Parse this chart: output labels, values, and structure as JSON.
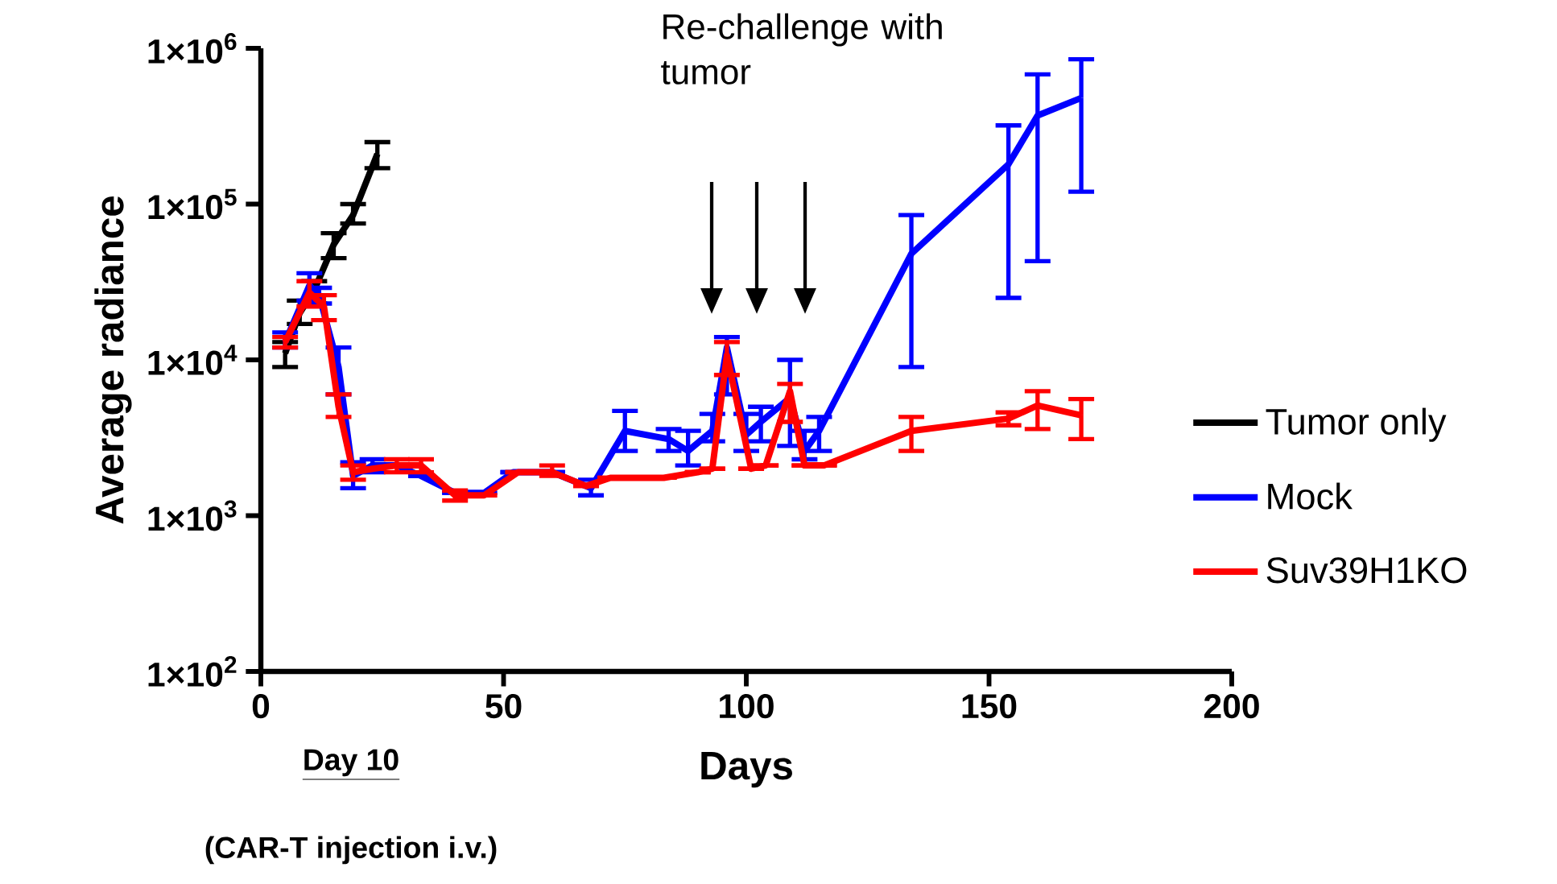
{
  "chart_data": {
    "type": "line",
    "xlabel": "Days",
    "ylabel": "Average radiance",
    "xlim": [
      0,
      200
    ],
    "xticks": [
      0,
      50,
      100,
      150,
      200
    ],
    "ylim": [
      100,
      1000000
    ],
    "yticks": [
      {
        "value": 100,
        "label": "1×10$^{2}$"
      },
      {
        "value": 1000,
        "label": "1×10$^{3}$"
      },
      {
        "value": 10000,
        "label": "1×10$^{4}$"
      },
      {
        "value": 100000,
        "label": "1×10$^{5}$"
      },
      {
        "value": 1000000,
        "label": "1×10$^{6}$"
      }
    ],
    "log": true,
    "legend": "right",
    "marker": "none",
    "line_style": "solid",
    "series": [
      {
        "name": "Tumor only",
        "color": "#000000",
        "x": [
          5,
          8,
          11,
          15,
          19,
          24
        ],
        "values": [
          11000,
          20000,
          28000,
          55000,
          85000,
          210000
        ],
        "errors": [
          [
            9000,
            13000
          ],
          [
            17000,
            24000
          ],
          [
            23000,
            32000
          ],
          [
            45000,
            65000
          ],
          [
            75000,
            100000
          ],
          [
            170000,
            250000
          ]
        ]
      },
      {
        "name": "Mock",
        "color": "#0000ff",
        "x": [
          5,
          10,
          12,
          16,
          19,
          23,
          28,
          33,
          40,
          46,
          52,
          60,
          68,
          75,
          84,
          88,
          93,
          96,
          100,
          103,
          109,
          112,
          115,
          134,
          154,
          160,
          169
        ],
        "values": [
          13000,
          30000,
          26000,
          9000,
          1800,
          2100,
          2100,
          1800,
          1400,
          1400,
          1900,
          1900,
          1500,
          3500,
          3100,
          2600,
          3500,
          12000,
          3300,
          4000,
          5700,
          2600,
          3500,
          48000,
          180000,
          370000,
          480000
        ],
        "errors": [
          [
            12000,
            15000
          ],
          [
            24000,
            36000
          ],
          [
            23000,
            29000
          ],
          [
            6000,
            12000
          ],
          [
            1500,
            2200
          ],
          [
            1900,
            2300
          ],
          null,
          null,
          null,
          null,
          null,
          null,
          [
            1350,
            1700
          ],
          [
            2600,
            4700
          ],
          [
            2600,
            3600
          ],
          [
            2100,
            3500
          ],
          [
            3000,
            4500
          ],
          [
            6000,
            14000
          ],
          [
            2600,
            4500
          ],
          [
            3000,
            5000
          ],
          [
            2800,
            10000
          ],
          [
            2300,
            3500
          ],
          [
            2600,
            4300
          ],
          [
            9000,
            85000
          ],
          [
            25000,
            320000
          ],
          [
            43000,
            680000
          ],
          [
            120000,
            850000
          ]
        ]
      },
      {
        "name": "Suv39H1KO",
        "color": "#ff0000",
        "x": [
          5,
          10,
          13,
          16,
          19,
          23,
          28,
          33,
          40,
          46,
          53,
          60,
          67,
          72,
          83,
          90,
          93,
          96,
          101,
          104,
          109,
          112,
          116,
          134,
          154,
          160,
          169
        ],
        "values": [
          13000,
          27000,
          22000,
          5000,
          1900,
          2000,
          2100,
          2100,
          1350,
          1350,
          1900,
          1900,
          1550,
          1750,
          1750,
          1900,
          2000,
          10700,
          2000,
          2100,
          6300,
          2100,
          2100,
          3500,
          4200,
          5100,
          4400
        ],
        "errors": [
          [
            12000,
            14000
          ],
          [
            22000,
            32000
          ],
          [
            18000,
            26000
          ],
          [
            4300,
            6000
          ],
          [
            1700,
            2100
          ],
          null,
          [
            1900,
            2300
          ],
          [
            1900,
            2300
          ],
          [
            1250,
            1450
          ],
          null,
          null,
          [
            1800,
            2100
          ],
          null,
          null,
          null,
          null,
          null,
          [
            8000,
            13000
          ],
          null,
          null,
          [
            4000,
            7000
          ],
          null,
          null,
          [
            2600,
            4300
          ],
          [
            3800,
            4600
          ],
          [
            3600,
            6300
          ],
          [
            3100,
            5600
          ]
        ]
      }
    ],
    "annotations": [
      "Re-challenge with tumor",
      "Day 10",
      "(CAR-T injection i.v.)"
    ]
  }
}
